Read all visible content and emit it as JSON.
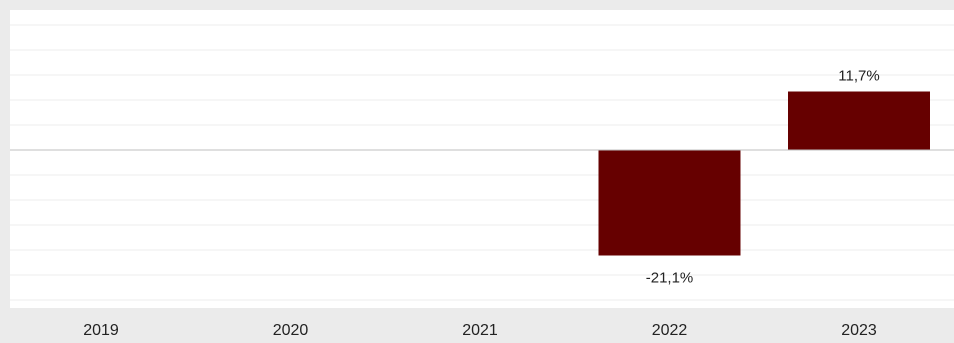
{
  "chart_data": {
    "type": "bar",
    "categories": [
      "2019",
      "2020",
      "2021",
      "2022",
      "2023"
    ],
    "values": [
      null,
      null,
      null,
      -21.1,
      11.7
    ],
    "data_labels": [
      "",
      "",
      "",
      "-21,1%",
      "11,7%"
    ],
    "ylim": [
      -35,
      30
    ],
    "grid": true,
    "bar_color": "#660000",
    "plot_background": "#ffffff",
    "page_background": "#ebebeb",
    "grid_color": "#ececec",
    "zero_line_color": "#bfbfbf"
  }
}
